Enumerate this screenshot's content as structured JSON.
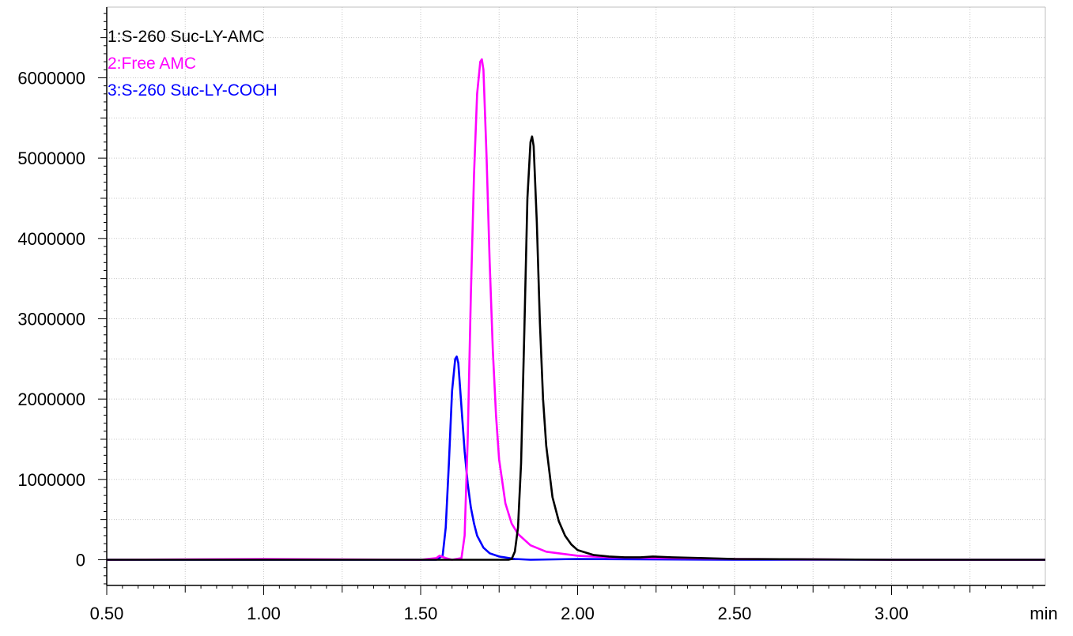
{
  "chart_data": {
    "type": "line",
    "title": "",
    "xlabel": "min",
    "ylabel": "",
    "xlim": [
      0.5,
      3.49
    ],
    "ylim": [
      -320000,
      6880000
    ],
    "x_ticks": [
      "0.50",
      "1.00",
      "1.50",
      "2.00",
      "2.50",
      "3.00"
    ],
    "y_ticks": [
      "0",
      "1000000",
      "2000000",
      "3000000",
      "4000000",
      "5000000",
      "6000000"
    ],
    "grid": true,
    "legend_position": "top-left",
    "series": [
      {
        "name": "1:S-260 Suc-LY-AMC",
        "color": "#000000",
        "x": [
          0.5,
          1.0,
          1.5,
          1.7,
          1.78,
          1.79,
          1.8,
          1.81,
          1.82,
          1.83,
          1.84,
          1.85,
          1.855,
          1.86,
          1.87,
          1.88,
          1.89,
          1.9,
          1.92,
          1.94,
          1.96,
          1.98,
          2.0,
          2.05,
          2.1,
          2.15,
          2.2,
          2.24,
          2.3,
          2.4,
          2.5,
          3.0,
          3.49
        ],
        "values": [
          0,
          0,
          0,
          0,
          0,
          10000,
          100000,
          400000,
          1200000,
          2800000,
          4500000,
          5200000,
          5270000,
          5150000,
          4200000,
          2950000,
          2000000,
          1420000,
          780000,
          480000,
          300000,
          190000,
          120000,
          60000,
          40000,
          30000,
          30000,
          40000,
          30000,
          20000,
          10000,
          0,
          0
        ]
      },
      {
        "name": "2:Free AMC",
        "color": "#ff00ff",
        "x": [
          0.5,
          1.0,
          1.5,
          1.55,
          1.56,
          1.58,
          1.6,
          1.63,
          1.64,
          1.65,
          1.66,
          1.67,
          1.68,
          1.69,
          1.695,
          1.7,
          1.71,
          1.72,
          1.73,
          1.74,
          1.75,
          1.77,
          1.79,
          1.81,
          1.85,
          1.9,
          2.0,
          2.1,
          2.3,
          2.5,
          3.0,
          3.49
        ],
        "values": [
          0,
          10000,
          0,
          20000,
          50000,
          20000,
          0,
          20000,
          300000,
          1500000,
          3300000,
          4800000,
          5800000,
          6200000,
          6230000,
          6100000,
          5000000,
          3700000,
          2600000,
          1800000,
          1250000,
          700000,
          450000,
          320000,
          180000,
          100000,
          50000,
          30000,
          20000,
          10000,
          0,
          0
        ]
      },
      {
        "name": "3:S-260 Suc-LY-COOH",
        "color": "#0000ff",
        "x": [
          0.5,
          1.0,
          1.5,
          1.55,
          1.57,
          1.58,
          1.59,
          1.6,
          1.61,
          1.615,
          1.62,
          1.63,
          1.64,
          1.65,
          1.66,
          1.67,
          1.68,
          1.7,
          1.72,
          1.75,
          1.8,
          1.85,
          2.0,
          2.5,
          3.0,
          3.49
        ],
        "values": [
          0,
          0,
          0,
          0,
          50000,
          400000,
          1200000,
          2100000,
          2500000,
          2530000,
          2450000,
          1900000,
          1350000,
          950000,
          650000,
          450000,
          300000,
          150000,
          80000,
          40000,
          10000,
          0,
          10000,
          0,
          0,
          0
        ]
      }
    ]
  }
}
